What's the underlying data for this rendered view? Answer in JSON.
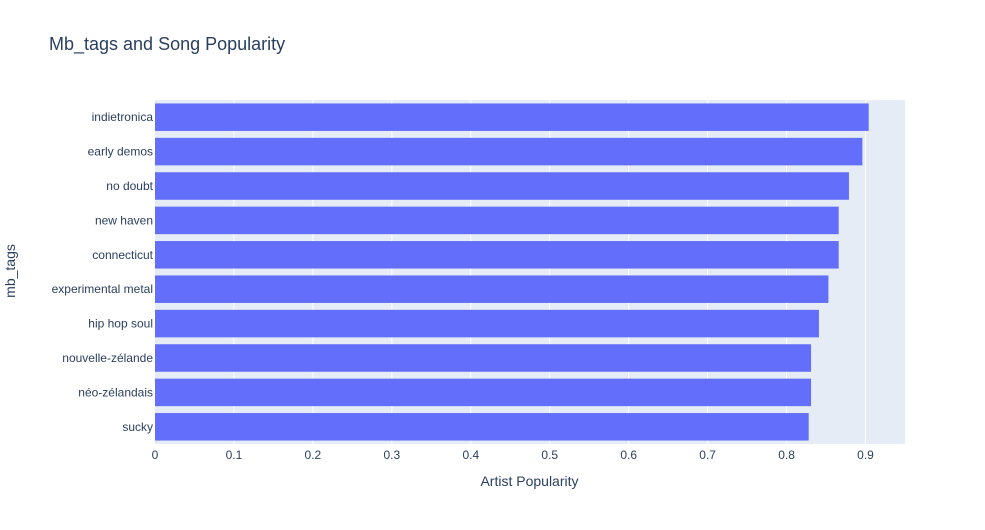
{
  "chart_data": {
    "type": "bar",
    "orientation": "horizontal",
    "title": "Mb_tags and Song Popularity",
    "xlabel": "Artist Popularity",
    "ylabel": "mb_tags",
    "xlim": [
      0,
      0.95
    ],
    "xticks": [
      "0",
      "0.1",
      "0.2",
      "0.3",
      "0.4",
      "0.5",
      "0.6",
      "0.7",
      "0.8",
      "0.9"
    ],
    "grid": true,
    "bar_color": "#636efa",
    "plot_background": "#e5ecf6",
    "categories": [
      "indietronica",
      "early demos",
      "no doubt",
      "new haven",
      "connecticut",
      "experimental metal",
      "hip hop soul",
      "nouvelle-zélande",
      "néo-zélandais",
      "sucky"
    ],
    "values": [
      0.904,
      0.896,
      0.879,
      0.866,
      0.866,
      0.853,
      0.841,
      0.831,
      0.831,
      0.828
    ]
  }
}
